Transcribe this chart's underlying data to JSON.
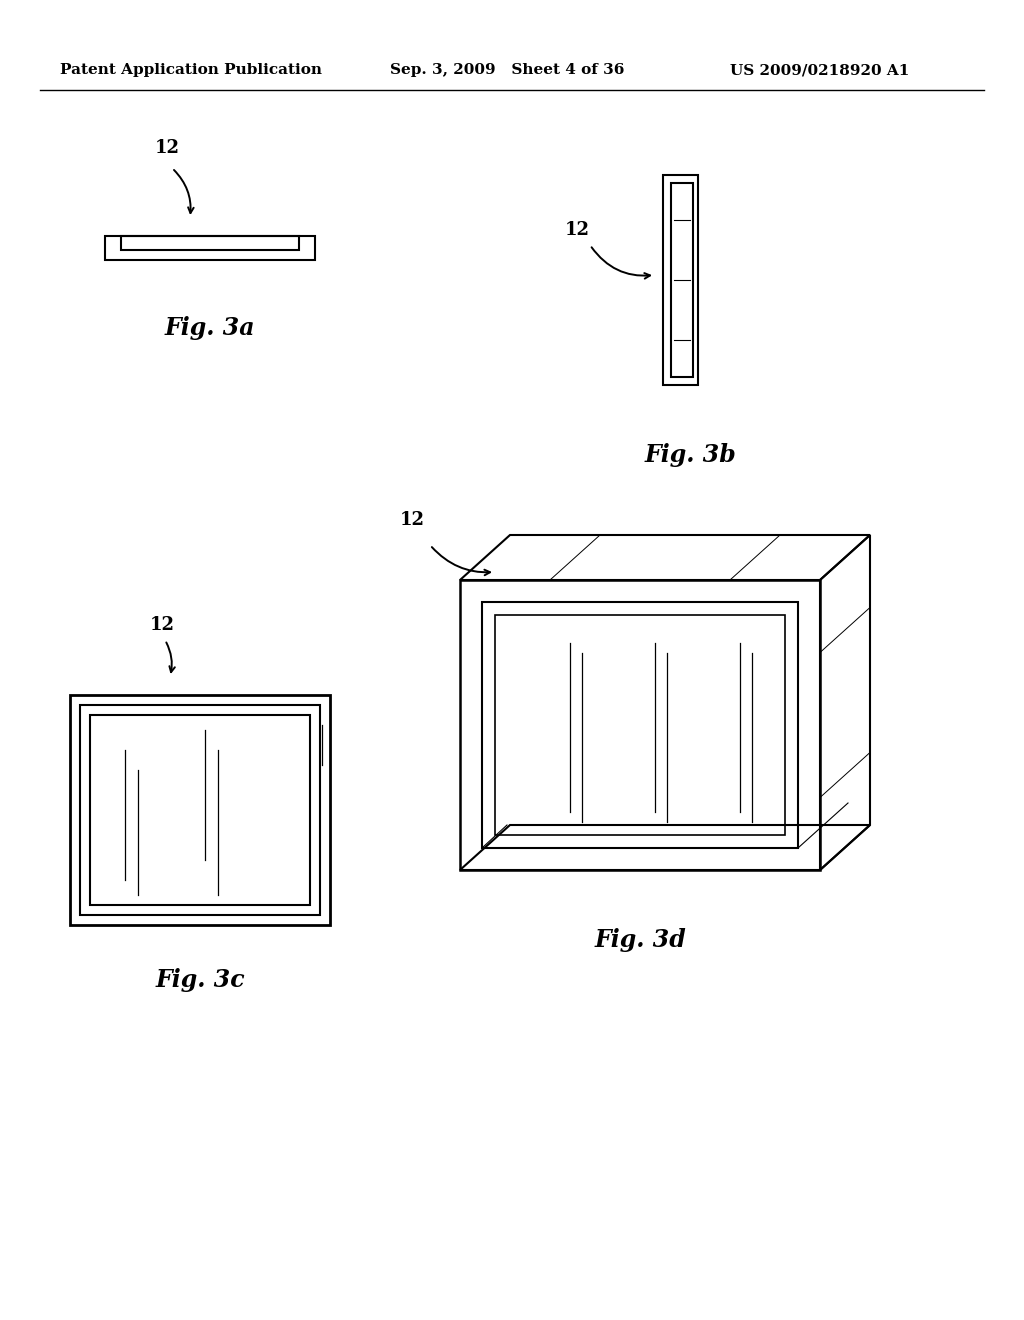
{
  "background_color": "#ffffff",
  "header_left": "Patent Application Publication",
  "header_mid": "Sep. 3, 2009   Sheet 4 of 36",
  "header_right": "US 2009/0218920 A1",
  "header_fontsize": 11,
  "fig_label_fontsize": 17,
  "ref_num_fontsize": 13,
  "fig3a_label": "Fig. 3a",
  "fig3b_label": "Fig. 3b",
  "fig3c_label": "Fig. 3c",
  "fig3d_label": "Fig. 3d",
  "ref_label": "12"
}
